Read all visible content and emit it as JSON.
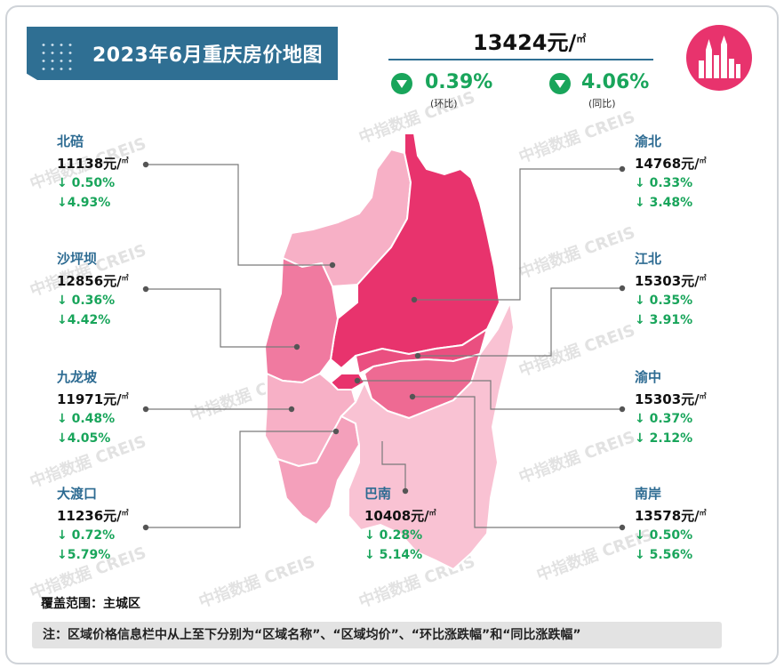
{
  "title": "2023年6月重庆房价地图",
  "overall": {
    "price": "13424元/",
    "unit_sup": "㎡",
    "mom_value": "0.39%",
    "mom_label": "(环比)",
    "yoy_value": "4.06%",
    "yoy_label": "(同比)"
  },
  "colors": {
    "banner": "#2f6f93",
    "down": "#19a55b",
    "logo": "#e8336d",
    "region_light": "#f5a8c0",
    "region_mid": "#ee6a93",
    "region_dark": "#e8336d"
  },
  "regions": [
    {
      "name": "北碚",
      "price": "11138元/",
      "sup": "㎡",
      "mom": "↓ 0.50%",
      "yoy": "↓4.93%"
    },
    {
      "name": "沙坪坝",
      "price": "12856元/",
      "sup": "㎡",
      "mom": "↓ 0.36%",
      "yoy": "↓4.42%"
    },
    {
      "name": "九龙坡",
      "price": "11971元/",
      "sup": "㎡",
      "mom": "↓ 0.48%",
      "yoy": "↓4.05%"
    },
    {
      "name": "大渡口",
      "price": "11236元/",
      "sup": "㎡",
      "mom": "↓ 0.72%",
      "yoy": "↓5.79%"
    },
    {
      "name": "渝北",
      "price": "14768元/",
      "sup": "㎡",
      "mom": "↓ 0.33%",
      "yoy": "↓ 3.48%"
    },
    {
      "name": "江北",
      "price": "15303元/",
      "sup": "㎡",
      "mom": "↓ 0.35%",
      "yoy": "↓ 3.91%"
    },
    {
      "name": "渝中",
      "price": "15303元/",
      "sup": "㎡",
      "mom": "↓ 0.37%",
      "yoy": "↓ 2.12%"
    },
    {
      "name": "南岸",
      "price": "13578元/",
      "sup": "㎡",
      "mom": "↓ 0.50%",
      "yoy": "↓ 5.56%"
    },
    {
      "name": "巴南",
      "price": "10408元/",
      "sup": "㎡",
      "mom": "↓ 0.28%",
      "yoy": "↓ 5.14%"
    }
  ],
  "coverage": "覆盖范围：主城区",
  "note": "注：区域价格信息栏中从上至下分别为“区域名称”、“区域均价”、“环比涨跌幅”和“同比涨跌幅”",
  "watermark": "中指数据  CREIS"
}
